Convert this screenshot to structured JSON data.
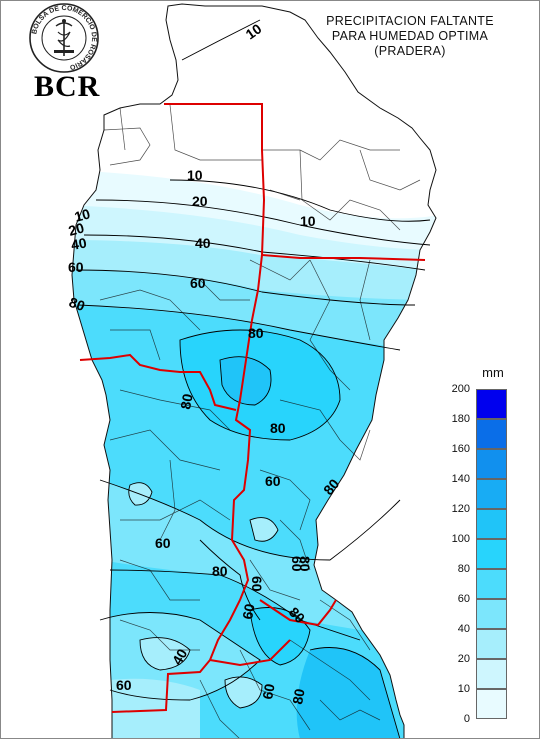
{
  "brand": {
    "logo_text": "BCR",
    "seal_text": "BOLSA DE COMERCIO DE ROSARIO"
  },
  "title": {
    "line1": "PRECIPITACION FALTANTE",
    "line2": "PARA HUMEDAD OPTIMA",
    "line3": "(PRADERA)"
  },
  "legend": {
    "unit": "mm",
    "classes": [
      {
        "label": "200",
        "color": "#0000ee"
      },
      {
        "label": "180",
        "color": "#0a6ee8"
      },
      {
        "label": "160",
        "color": "#1190ee"
      },
      {
        "label": "140",
        "color": "#18acf4"
      },
      {
        "label": "120",
        "color": "#20c4f8"
      },
      {
        "label": "100",
        "color": "#28d4fc"
      },
      {
        "label": "80",
        "color": "#4cdcfc"
      },
      {
        "label": "60",
        "color": "#7ce6fc"
      },
      {
        "label": "40",
        "color": "#a6eefc"
      },
      {
        "label": "20",
        "color": "#cef6fe"
      },
      {
        "label": "10",
        "color": "#e8fbff"
      },
      {
        "label": "0",
        "color": "#ffffff"
      }
    ]
  },
  "contour_labels": [
    "10",
    "10",
    "10",
    "20",
    "40",
    "60",
    "80",
    "80",
    "80",
    "60",
    "60",
    "80",
    "60",
    "60",
    "80",
    "80",
    "60",
    "60",
    "80",
    "40",
    "60",
    "60",
    "80",
    "10",
    "20",
    "40",
    "60",
    "80"
  ],
  "map": {
    "boundary_color": "#dd0000",
    "isoline_color": "#000000"
  }
}
